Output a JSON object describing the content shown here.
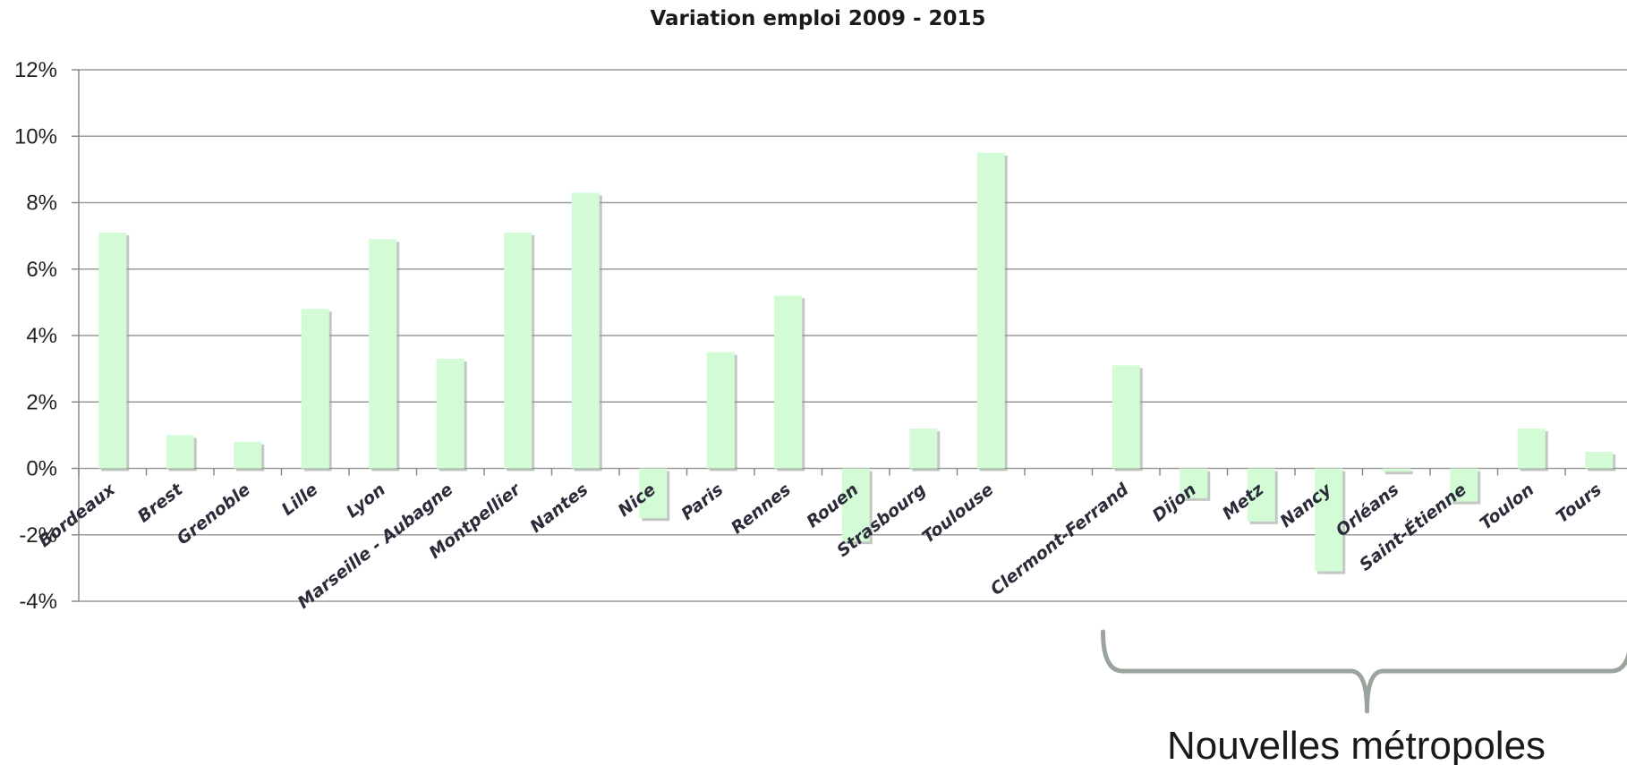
{
  "chart_data": {
    "type": "bar",
    "title": "Variation emploi 2009 - 2015",
    "xlabel": "",
    "ylabel": "",
    "ylim": [
      -4,
      12
    ],
    "yticks": [
      -4,
      -2,
      0,
      2,
      4,
      6,
      8,
      10,
      12
    ],
    "ytick_suffix": "%",
    "grid": true,
    "bar_color": "#d2fbd6",
    "categories": [
      "Bordeaux",
      "Brest",
      "Grenoble",
      "Lille",
      "Lyon",
      "Marseille - Aubagne",
      "Montpellier",
      "Nantes",
      "Nice",
      "Paris",
      "Rennes",
      "Rouen",
      "Strasbourg",
      "Toulouse",
      "",
      "Clermont-Ferrand",
      "Dijon",
      "Metz",
      "Nancy",
      "Orléans",
      "Saint-Étienne",
      "Toulon",
      "Tours"
    ],
    "values": [
      7.1,
      1.0,
      0.8,
      4.8,
      6.9,
      3.3,
      7.1,
      8.3,
      -1.5,
      3.5,
      5.2,
      -2.2,
      1.2,
      9.5,
      null,
      3.1,
      -0.9,
      -1.6,
      -3.1,
      -0.1,
      -1.0,
      1.2,
      0.5
    ],
    "annotations": [
      {
        "text": "Nouvelles métropoles",
        "covers": [
          "Clermont-Ferrand",
          "Tours"
        ]
      }
    ]
  }
}
